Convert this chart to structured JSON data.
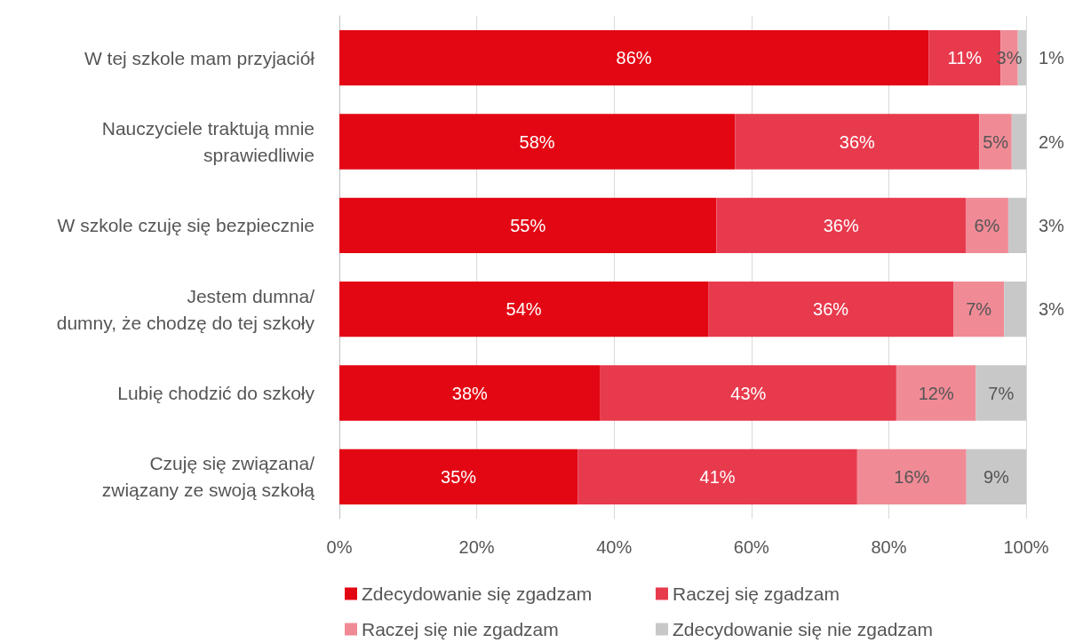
{
  "chart_data": {
    "type": "bar",
    "orientation": "horizontal",
    "stacked": true,
    "categories": [
      "W tej szkole mam przyjaciół",
      "Nauczyciele traktują mnie\nsprawiedliwie",
      "W szkole czuję się bezpiecznie",
      "Jestem dumna/\ndumny, że chodzę do tej szkoły",
      "Lubię chodzić do szkoły",
      "Czuję się związana/\nzwiązany ze swoją szkołą"
    ],
    "series": [
      {
        "name": "Zdecydowanie się zgadzam",
        "color": "#e30613",
        "values": [
          85.8,
          57.6,
          54.9,
          53.7,
          38.0,
          34.7
        ],
        "value_labels": [
          "86%",
          "58%",
          "55%",
          "54%",
          "38%",
          "35%"
        ]
      },
      {
        "name": "Raczej się zgadzam",
        "color": "#e83a4d",
        "values": [
          10.5,
          35.6,
          36.3,
          35.7,
          43.1,
          40.7
        ],
        "value_labels": [
          "11%",
          "36%",
          "36%",
          "36%",
          "43%",
          "41%"
        ]
      },
      {
        "name": "Raczej się nie zgadzam",
        "color": "#f08b96",
        "values": [
          2.5,
          4.7,
          6.2,
          7.4,
          11.6,
          15.9
        ],
        "value_labels": [
          "3%",
          "5%",
          "6%",
          "7%",
          "12%",
          "16%"
        ]
      },
      {
        "name": "Zdecydowanie się nie zgadzam",
        "color": "#c8c8c8",
        "values": [
          1.2,
          2.1,
          2.6,
          3.2,
          7.3,
          8.7
        ],
        "value_labels": [
          "1%",
          "2%",
          "3%",
          "3%",
          "7%",
          "9%"
        ]
      }
    ],
    "xlim": [
      0,
      100
    ],
    "xticks": [
      {
        "value": 0,
        "label": "0%"
      },
      {
        "value": 20,
        "label": "20%"
      },
      {
        "value": 40,
        "label": "40%"
      },
      {
        "value": 60,
        "label": "60%"
      },
      {
        "value": 80,
        "label": "80%"
      },
      {
        "value": 100,
        "label": "100%"
      }
    ],
    "grid": "x",
    "legend": "bottom"
  }
}
